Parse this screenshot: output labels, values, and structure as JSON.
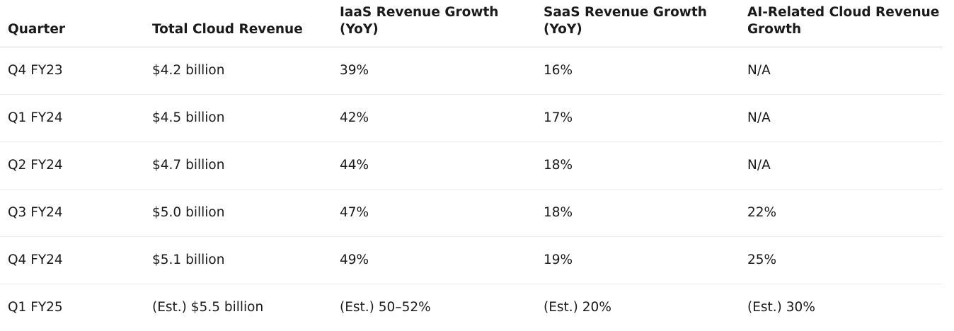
{
  "table": {
    "headers": [
      "Quarter",
      "Total Cloud Revenue",
      "IaaS Revenue Growth (YoY)",
      "SaaS Revenue Growth (YoY)",
      "AI-Related Cloud Revenue Growth"
    ],
    "rows": [
      [
        "Q4 FY23",
        "$4.2 billion",
        "39%",
        "16%",
        "N/A"
      ],
      [
        "Q1 FY24",
        "$4.5 billion",
        "42%",
        "17%",
        "N/A"
      ],
      [
        "Q2 FY24",
        "$4.7 billion",
        "44%",
        "18%",
        "N/A"
      ],
      [
        "Q3 FY24",
        "$5.0 billion",
        "47%",
        "18%",
        "22%"
      ],
      [
        "Q4 FY24",
        "$5.1 billion",
        "49%",
        "19%",
        "25%"
      ],
      [
        "Q1 FY25",
        "(Est.) $5.5 billion",
        "(Est.) 50–52%",
        "(Est.) 20%",
        "(Est.) 30%"
      ]
    ]
  }
}
